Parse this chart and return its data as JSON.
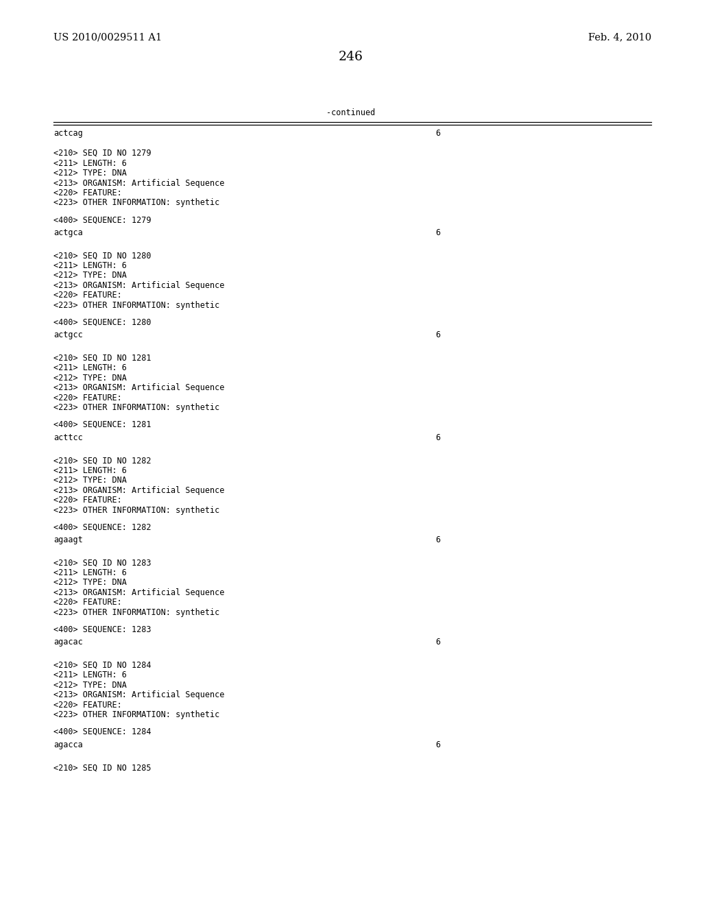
{
  "header_left": "US 2010/0029511 A1",
  "header_right": "Feb. 4, 2010",
  "page_number": "246",
  "continued_label": "-continued",
  "bg_color": "#ffffff",
  "text_color": "#000000",
  "font_size_header": 10.5,
  "font_size_body": 8.5,
  "font_size_page": 13.5,
  "blocks": [
    {
      "intro_seq": "actcag",
      "intro_len": "6",
      "meta": [
        "<210> SEQ ID NO 1279",
        "<211> LENGTH: 6",
        "<212> TYPE: DNA",
        "<213> ORGANISM: Artificial Sequence",
        "<220> FEATURE:",
        "<223> OTHER INFORMATION: synthetic"
      ],
      "seq_label": "<400> SEQUENCE: 1279",
      "seq_data": "actgca",
      "seq_len": "6"
    },
    {
      "intro_seq": null,
      "intro_len": null,
      "meta": [
        "<210> SEQ ID NO 1280",
        "<211> LENGTH: 6",
        "<212> TYPE: DNA",
        "<213> ORGANISM: Artificial Sequence",
        "<220> FEATURE:",
        "<223> OTHER INFORMATION: synthetic"
      ],
      "seq_label": "<400> SEQUENCE: 1280",
      "seq_data": "actgcc",
      "seq_len": "6"
    },
    {
      "intro_seq": null,
      "intro_len": null,
      "meta": [
        "<210> SEQ ID NO 1281",
        "<211> LENGTH: 6",
        "<212> TYPE: DNA",
        "<213> ORGANISM: Artificial Sequence",
        "<220> FEATURE:",
        "<223> OTHER INFORMATION: synthetic"
      ],
      "seq_label": "<400> SEQUENCE: 1281",
      "seq_data": "acttcc",
      "seq_len": "6"
    },
    {
      "intro_seq": null,
      "intro_len": null,
      "meta": [
        "<210> SEQ ID NO 1282",
        "<211> LENGTH: 6",
        "<212> TYPE: DNA",
        "<213> ORGANISM: Artificial Sequence",
        "<220> FEATURE:",
        "<223> OTHER INFORMATION: synthetic"
      ],
      "seq_label": "<400> SEQUENCE: 1282",
      "seq_data": "agaagt",
      "seq_len": "6"
    },
    {
      "intro_seq": null,
      "intro_len": null,
      "meta": [
        "<210> SEQ ID NO 1283",
        "<211> LENGTH: 6",
        "<212> TYPE: DNA",
        "<213> ORGANISM: Artificial Sequence",
        "<220> FEATURE:",
        "<223> OTHER INFORMATION: synthetic"
      ],
      "seq_label": "<400> SEQUENCE: 1283",
      "seq_data": "agacac",
      "seq_len": "6"
    },
    {
      "intro_seq": null,
      "intro_len": null,
      "meta": [
        "<210> SEQ ID NO 1284",
        "<211> LENGTH: 6",
        "<212> TYPE: DNA",
        "<213> ORGANISM: Artificial Sequence",
        "<220> FEATURE:",
        "<223> OTHER INFORMATION: synthetic"
      ],
      "seq_label": "<400> SEQUENCE: 1284",
      "seq_data": "agacca",
      "seq_len": "6"
    },
    {
      "intro_seq": null,
      "intro_len": null,
      "meta": [
        "<210> SEQ ID NO 1285"
      ],
      "seq_label": null,
      "seq_data": null,
      "seq_len": null
    }
  ]
}
